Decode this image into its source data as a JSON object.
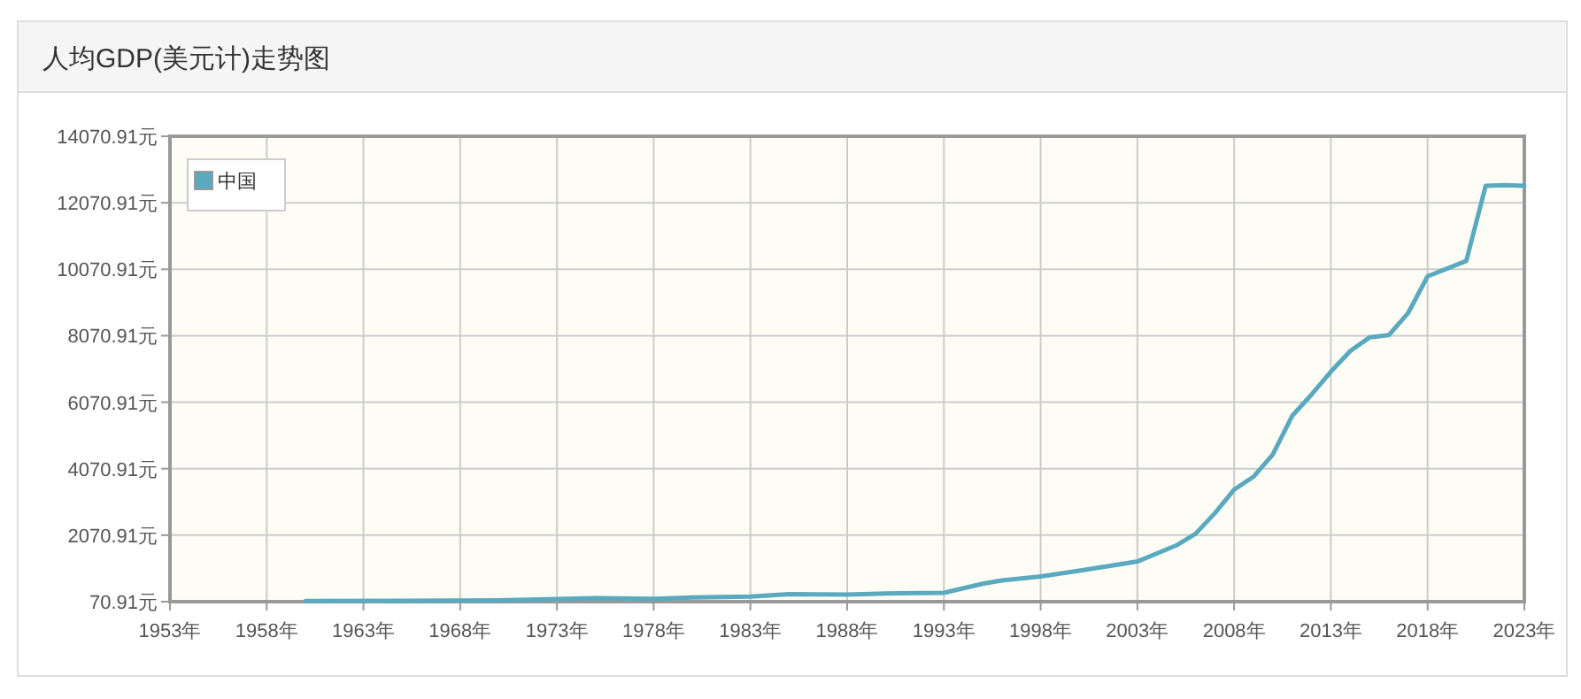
{
  "chart_data": {
    "type": "line",
    "title": "人均GDP(美元计)走势图",
    "x": [
      1960,
      1965,
      1970,
      1975,
      1978,
      1980,
      1983,
      1985,
      1988,
      1990,
      1993,
      1995,
      1996,
      1998,
      2000,
      2003,
      2005,
      2006,
      2007,
      2008,
      2009,
      2010,
      2011,
      2012,
      2013,
      2014,
      2015,
      2016,
      2017,
      2018,
      2019,
      2020,
      2021,
      2022,
      2023
    ],
    "series": [
      {
        "name": "中国",
        "color": "#5aa9bf",
        "values": [
          90,
          98,
          113,
          178,
          156,
          195,
          225,
          294,
          284,
          318,
          337,
          610,
          710,
          830,
          1000,
          1280,
          1760,
          2110,
          2730,
          3440,
          3830,
          4500,
          5660,
          6300,
          6990,
          7610,
          8020,
          8090,
          8760,
          9860,
          10090,
          10320,
          12580,
          12600,
          12580
        ]
      }
    ],
    "xlim": [
      1953,
      2023
    ],
    "xticks": [
      {
        "value": 1953,
        "label": "1953年"
      },
      {
        "value": 1958,
        "label": "1958年"
      },
      {
        "value": 1963,
        "label": "1963年"
      },
      {
        "value": 1968,
        "label": "1968年"
      },
      {
        "value": 1973,
        "label": "1973年"
      },
      {
        "value": 1978,
        "label": "1978年"
      },
      {
        "value": 1983,
        "label": "1983年"
      },
      {
        "value": 1988,
        "label": "1988年"
      },
      {
        "value": 1993,
        "label": "1993年"
      },
      {
        "value": 1998,
        "label": "1998年"
      },
      {
        "value": 2003,
        "label": "2003年"
      },
      {
        "value": 2008,
        "label": "2008年"
      },
      {
        "value": 2013,
        "label": "2013年"
      },
      {
        "value": 2018,
        "label": "2018年"
      },
      {
        "value": 2023,
        "label": "2023年"
      }
    ],
    "ylim": [
      70.91,
      14070.91
    ],
    "yticks": [
      {
        "value": 70.91,
        "label": "70.91元"
      },
      {
        "value": 2070.91,
        "label": "2070.91元"
      },
      {
        "value": 4070.91,
        "label": "4070.91元"
      },
      {
        "value": 6070.91,
        "label": "6070.91元"
      },
      {
        "value": 8070.91,
        "label": "8070.91元"
      },
      {
        "value": 10070.91,
        "label": "10070.91元"
      },
      {
        "value": 12070.91,
        "label": "12070.91元"
      },
      {
        "value": 14070.91,
        "label": "14070.91元"
      }
    ],
    "grid": true,
    "legend": "top left",
    "marker": "none",
    "line_style": "solid"
  }
}
